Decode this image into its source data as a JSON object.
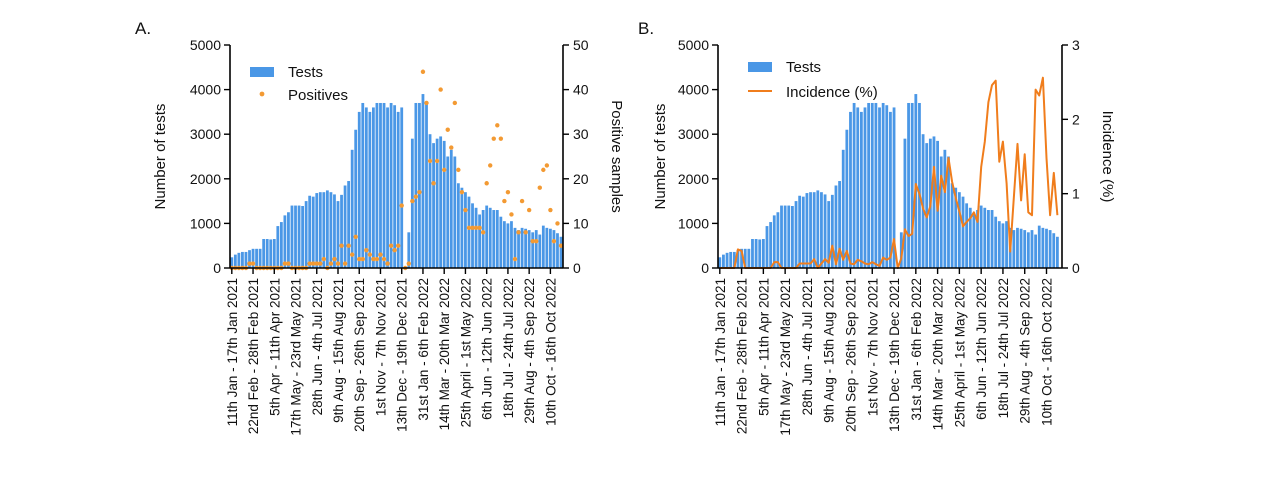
{
  "chart_data": [
    {
      "panel_label": "A.",
      "type": "bar+scatter",
      "ylabel": "Number of tests",
      "y2label": "Positive samples",
      "ylim": [
        0,
        5000
      ],
      "y2lim": [
        0,
        50
      ],
      "yticks": [
        "0",
        "1000",
        "2000",
        "3000",
        "4000",
        "5000"
      ],
      "y2ticks": [
        "0",
        "10",
        "20",
        "30",
        "40",
        "50"
      ],
      "legend": {
        "placement": "top-left",
        "entries": [
          "Tests",
          "Positives"
        ]
      },
      "grid": false,
      "xtick_labels": [
        "11th Jan - 17th Jan 2021",
        "22nd Feb - 28th Feb 2021",
        "5th Apr - 11th Apr 2021",
        "17th May - 23rd May 2021",
        "28th Jun - 4th Jul 2021",
        "9th Aug - 15th Aug 2021",
        "20th Sep - 26th Sep 2021",
        "1st Nov - 7th Nov 2021",
        "13th Dec - 19th Dec 2021",
        "31st Jan - 6th Feb 2022",
        "14th Mar - 20th Mar 2022",
        "25th April - 1st May 2022",
        "6th Jun - 12th Jun 2022",
        "18th Jul - 24th Jul 2022",
        "29th Aug - 4th Sep 2022",
        "10th Oct - 16th Oct 2022"
      ],
      "series": [
        {
          "name": "Tests",
          "kind": "bar",
          "color": "#4a97e6",
          "values": [
            240,
            300,
            340,
            360,
            360,
            400,
            430,
            430,
            430,
            650,
            650,
            640,
            650,
            940,
            1030,
            1180,
            1250,
            1400,
            1400,
            1400,
            1390,
            1500,
            1620,
            1600,
            1680,
            1700,
            1700,
            1740,
            1700,
            1650,
            1500,
            1640,
            1850,
            1950,
            2650,
            3100,
            3500,
            3700,
            3600,
            3500,
            3600,
            3700,
            3700,
            3700,
            3600,
            3700,
            3650,
            3500,
            3600,
            0,
            800,
            2900,
            3700,
            3700,
            3900,
            3700,
            3000,
            2800,
            2900,
            2950,
            2850,
            2500,
            2650,
            2500,
            1900,
            1800,
            1700,
            1600,
            1450,
            1350,
            1200,
            1300,
            1400,
            1350,
            1300,
            1300,
            1150,
            1050,
            1000,
            1050,
            900,
            850,
            900,
            880,
            850,
            800,
            850,
            750,
            950,
            900,
            880,
            850,
            780,
            700
          ]
        },
        {
          "name": "Positives",
          "kind": "scatter",
          "axis": "right",
          "color": "#f39a33",
          "values": [
            0,
            0,
            0,
            0,
            0,
            1,
            1,
            0,
            0,
            0,
            0,
            0,
            0,
            0,
            0,
            1,
            1,
            0,
            0,
            0,
            0,
            0,
            1,
            1,
            1,
            1,
            2,
            0,
            1,
            2,
            1,
            5,
            1,
            5,
            3,
            7,
            2,
            2,
            4,
            3,
            2,
            2,
            3,
            2,
            1,
            5,
            4,
            5,
            14,
            0,
            1,
            15,
            16,
            17,
            44,
            37,
            24,
            19,
            24,
            40,
            22,
            31,
            27,
            37,
            22,
            17,
            13,
            9,
            9,
            9,
            9,
            8,
            19,
            23,
            29,
            32,
            29,
            15,
            17,
            12,
            2,
            8,
            15,
            8,
            13,
            6,
            6,
            18,
            22,
            23,
            13,
            6,
            10,
            5
          ]
        }
      ]
    },
    {
      "panel_label": "B.",
      "type": "bar+line",
      "ylabel": "Number of tests",
      "y2label": "Incidence (%)",
      "ylim": [
        0,
        5000
      ],
      "y2lim": [
        0,
        3
      ],
      "yticks": [
        "0",
        "1000",
        "2000",
        "3000",
        "4000",
        "5000"
      ],
      "y2ticks": [
        "0",
        "1",
        "2",
        "3"
      ],
      "legend": {
        "placement": "top-left",
        "entries": [
          "Tests",
          "Incidence (%)"
        ]
      },
      "grid": false,
      "xtick_labels": [
        "11th Jan - 17th Jan 2021",
        "22nd Feb - 28th Feb 2021",
        "5th Apr - 11th Apr 2021",
        "17th May - 23rd May 2021",
        "28th Jun - 4th Jul 2021",
        "9th Aug - 15th Aug 2021",
        "20th Sep - 26th Sep 2021",
        "1st Nov - 7th Nov 2021",
        "13th Dec - 19th Dec 2021",
        "31st Jan - 6th Feb 2022",
        "14th Mar - 20th Mar 2022",
        "25th April - 1st May 2022",
        "6th Jun - 12th Jun 2022",
        "18th Jul - 24th Jul 2022",
        "29th Aug - 4th Sep 2022",
        "10th Oct - 16th Oct 2022"
      ],
      "series": [
        {
          "name": "Tests",
          "kind": "bar",
          "color": "#4a97e6",
          "values": [
            240,
            300,
            340,
            360,
            360,
            400,
            430,
            430,
            430,
            650,
            650,
            640,
            650,
            940,
            1030,
            1180,
            1250,
            1400,
            1400,
            1400,
            1390,
            1500,
            1620,
            1600,
            1680,
            1700,
            1700,
            1740,
            1700,
            1650,
            1500,
            1640,
            1850,
            1950,
            2650,
            3100,
            3500,
            3700,
            3600,
            3500,
            3600,
            3700,
            3700,
            3700,
            3600,
            3700,
            3650,
            3500,
            3600,
            0,
            800,
            2900,
            3700,
            3700,
            3900,
            3700,
            3000,
            2800,
            2900,
            2950,
            2850,
            2500,
            2650,
            2500,
            1900,
            1800,
            1700,
            1600,
            1450,
            1350,
            1200,
            1300,
            1400,
            1350,
            1300,
            1300,
            1150,
            1050,
            1000,
            1050,
            900,
            850,
            900,
            880,
            850,
            800,
            850,
            750,
            950,
            900,
            880,
            850,
            780,
            700
          ]
        },
        {
          "name": "Incidence (%)",
          "kind": "line",
          "axis": "right",
          "color": "#f07d1c",
          "values": [
            0,
            0,
            0,
            0,
            0,
            0.25,
            0.23,
            0,
            0,
            0,
            0,
            0,
            0,
            0,
            0,
            0.08,
            0.08,
            0,
            0,
            0,
            0,
            0,
            0.06,
            0.06,
            0.06,
            0.06,
            0.12,
            0,
            0.06,
            0.12,
            0.07,
            0.3,
            0.05,
            0.26,
            0.11,
            0.23,
            0.06,
            0.05,
            0.11,
            0.09,
            0.06,
            0.05,
            0.08,
            0.05,
            0.03,
            0.14,
            0.11,
            0.14,
            0.39,
            0,
            0.13,
            0.52,
            0.43,
            0.46,
            1.13,
            1.0,
            0.8,
            0.68,
            0.83,
            1.36,
            0.77,
            1.24,
            1.02,
            1.48,
            1.16,
            0.94,
            0.76,
            0.56,
            0.62,
            0.67,
            0.75,
            0.62,
            1.36,
            1.7,
            2.23,
            2.46,
            2.52,
            1.43,
            1.7,
            1.14,
            0.22,
            0.94,
            1.67,
            0.91,
            1.53,
            0.75,
            0.71,
            2.4,
            2.32,
            2.56,
            1.48,
            0.71,
            1.28,
            0.71
          ]
        }
      ]
    }
  ]
}
